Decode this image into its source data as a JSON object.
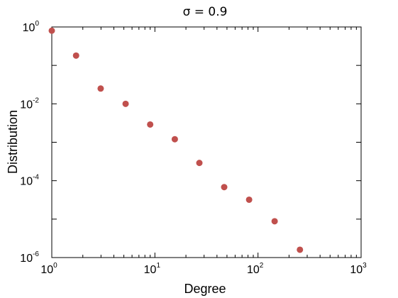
{
  "chart_data": {
    "type": "scatter",
    "title": "σ = 0.9",
    "xlabel": "Degree",
    "ylabel": "Distribution",
    "xscale": "log",
    "yscale": "log",
    "xlim": [
      1,
      1000
    ],
    "ylim": [
      1e-06,
      1
    ],
    "grid": false,
    "x_ticks": [
      {
        "base": "10",
        "exp": "0",
        "value": 1
      },
      {
        "base": "10",
        "exp": "1",
        "value": 10
      },
      {
        "base": "10",
        "exp": "2",
        "value": 100
      },
      {
        "base": "10",
        "exp": "3",
        "value": 1000
      }
    ],
    "y_ticks": [
      {
        "base": "10",
        "exp": "-6",
        "value": 1e-06
      },
      {
        "base": "10",
        "exp": "-4",
        "value": 0.0001
      },
      {
        "base": "10",
        "exp": "-2",
        "value": 0.01
      },
      {
        "base": "10",
        "exp": "0",
        "value": 1
      }
    ],
    "marker_color": "#c0504d",
    "points": [
      {
        "x": 1.0,
        "y": 0.8
      },
      {
        "x": 1.72,
        "y": 0.18
      },
      {
        "x": 2.98,
        "y": 0.025
      },
      {
        "x": 5.2,
        "y": 0.01
      },
      {
        "x": 9.0,
        "y": 0.0029
      },
      {
        "x": 15.6,
        "y": 0.0012
      },
      {
        "x": 27.0,
        "y": 0.00029
      },
      {
        "x": 47.0,
        "y": 6.8e-05
      },
      {
        "x": 82.0,
        "y": 3.2e-05
      },
      {
        "x": 145.0,
        "y": 8.8e-06
      },
      {
        "x": 255.0,
        "y": 1.6e-06
      }
    ]
  }
}
